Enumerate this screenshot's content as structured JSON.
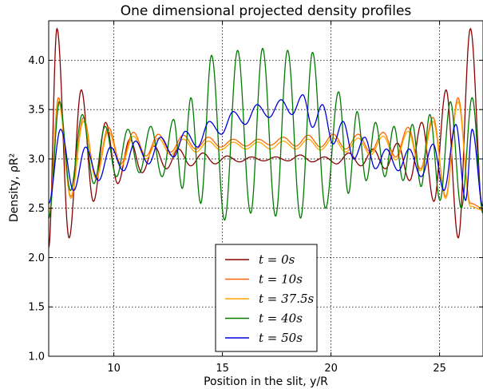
{
  "chart_data": {
    "type": "line",
    "title": "One dimensional projected density profiles",
    "xlabel": "Position in the slit, y/R",
    "ylabel": "Density, ρR²",
    "xlim": [
      7,
      27
    ],
    "ylim": [
      1.0,
      4.4
    ],
    "xticks": [
      10,
      15,
      20,
      25
    ],
    "xtick_labels": [
      "10",
      "15",
      "20",
      "25"
    ],
    "yticks": [
      1.0,
      1.5,
      2.0,
      2.5,
      3.0,
      3.5,
      4.0
    ],
    "ytick_labels": [
      "1.0",
      "1.5",
      "2.0",
      "2.5",
      "3.0",
      "3.5",
      "4.0"
    ],
    "grid": true,
    "legend_position": "lower center",
    "series": [
      {
        "name": "t = 0s",
        "label": "t = 0s",
        "color": "#8b0000",
        "peaks": [
          {
            "x": 7.38,
            "y": 4.32
          },
          {
            "x": 8.5,
            "y": 3.7
          },
          {
            "x": 9.62,
            "y": 3.37
          },
          {
            "x": 10.74,
            "y": 3.2
          },
          {
            "x": 11.86,
            "y": 3.13
          },
          {
            "x": 12.98,
            "y": 3.1
          },
          {
            "x": 14.1,
            "y": 3.06
          },
          {
            "x": 15.22,
            "y": 3.03
          },
          {
            "x": 16.34,
            "y": 3.02
          },
          {
            "x": 17.46,
            "y": 3.02
          },
          {
            "x": 18.58,
            "y": 3.04
          },
          {
            "x": 19.7,
            "y": 3.02
          },
          {
            "x": 20.82,
            "y": 3.06
          },
          {
            "x": 21.94,
            "y": 3.1
          },
          {
            "x": 23.06,
            "y": 3.16
          },
          {
            "x": 24.18,
            "y": 3.37
          },
          {
            "x": 25.3,
            "y": 3.7
          },
          {
            "x": 26.42,
            "y": 4.32
          }
        ],
        "troughs": [
          {
            "x": 7.0,
            "y": 2.1
          },
          {
            "x": 7.94,
            "y": 2.2
          },
          {
            "x": 9.06,
            "y": 2.57
          },
          {
            "x": 10.18,
            "y": 2.75
          },
          {
            "x": 11.3,
            "y": 2.86
          },
          {
            "x": 12.42,
            "y": 2.9
          },
          {
            "x": 13.54,
            "y": 2.93
          },
          {
            "x": 14.66,
            "y": 2.95
          },
          {
            "x": 15.78,
            "y": 2.97
          },
          {
            "x": 16.9,
            "y": 2.98
          },
          {
            "x": 18.02,
            "y": 2.98
          },
          {
            "x": 19.14,
            "y": 2.97
          },
          {
            "x": 20.26,
            "y": 2.95
          },
          {
            "x": 21.38,
            "y": 2.93
          },
          {
            "x": 22.5,
            "y": 2.9
          },
          {
            "x": 23.62,
            "y": 2.78
          },
          {
            "x": 24.74,
            "y": 2.57
          },
          {
            "x": 25.86,
            "y": 2.2
          },
          {
            "x": 27.0,
            "y": 2.45
          }
        ]
      },
      {
        "name": "t = 10s",
        "label": "t = 10s",
        "color": "#ff6600",
        "peaks": [
          {
            "x": 7.45,
            "y": 3.62
          },
          {
            "x": 8.6,
            "y": 3.42
          },
          {
            "x": 9.75,
            "y": 3.32
          },
          {
            "x": 10.9,
            "y": 3.27
          },
          {
            "x": 12.05,
            "y": 3.25
          },
          {
            "x": 13.2,
            "y": 3.24
          },
          {
            "x": 14.35,
            "y": 3.22
          },
          {
            "x": 15.5,
            "y": 3.2
          },
          {
            "x": 16.65,
            "y": 3.2
          },
          {
            "x": 17.8,
            "y": 3.22
          },
          {
            "x": 18.95,
            "y": 3.24
          },
          {
            "x": 20.1,
            "y": 3.25
          },
          {
            "x": 21.25,
            "y": 3.25
          },
          {
            "x": 22.4,
            "y": 3.27
          },
          {
            "x": 23.55,
            "y": 3.32
          },
          {
            "x": 24.7,
            "y": 3.42
          },
          {
            "x": 25.85,
            "y": 3.62
          }
        ],
        "troughs": [
          {
            "x": 7.0,
            "y": 2.4
          },
          {
            "x": 8.02,
            "y": 2.62
          },
          {
            "x": 9.18,
            "y": 2.82
          },
          {
            "x": 10.32,
            "y": 2.95
          },
          {
            "x": 11.48,
            "y": 3.03
          },
          {
            "x": 12.62,
            "y": 3.07
          },
          {
            "x": 13.78,
            "y": 3.1
          },
          {
            "x": 14.92,
            "y": 3.12
          },
          {
            "x": 16.08,
            "y": 3.13
          },
          {
            "x": 17.22,
            "y": 3.14
          },
          {
            "x": 18.38,
            "y": 3.13
          },
          {
            "x": 19.52,
            "y": 3.12
          },
          {
            "x": 20.68,
            "y": 3.1
          },
          {
            "x": 21.82,
            "y": 3.07
          },
          {
            "x": 22.98,
            "y": 3.02
          },
          {
            "x": 24.12,
            "y": 2.9
          },
          {
            "x": 25.28,
            "y": 2.62
          },
          {
            "x": 26.42,
            "y": 2.55
          },
          {
            "x": 27.0,
            "y": 2.5
          }
        ]
      },
      {
        "name": "t = 37.5s",
        "label": "t = 37.5s",
        "color": "#ffa500",
        "peaks": [
          {
            "x": 7.45,
            "y": 3.58
          },
          {
            "x": 8.6,
            "y": 3.38
          },
          {
            "x": 9.75,
            "y": 3.28
          },
          {
            "x": 10.9,
            "y": 3.23
          },
          {
            "x": 12.05,
            "y": 3.21
          },
          {
            "x": 13.2,
            "y": 3.2
          },
          {
            "x": 14.35,
            "y": 3.18
          },
          {
            "x": 15.5,
            "y": 3.17
          },
          {
            "x": 16.65,
            "y": 3.17
          },
          {
            "x": 17.8,
            "y": 3.18
          },
          {
            "x": 18.95,
            "y": 3.2
          },
          {
            "x": 20.1,
            "y": 3.21
          },
          {
            "x": 21.25,
            "y": 3.21
          },
          {
            "x": 22.4,
            "y": 3.23
          },
          {
            "x": 23.55,
            "y": 3.28
          },
          {
            "x": 24.7,
            "y": 3.38
          },
          {
            "x": 25.85,
            "y": 3.58
          }
        ],
        "troughs": [
          {
            "x": 7.0,
            "y": 2.4
          },
          {
            "x": 8.02,
            "y": 2.6
          },
          {
            "x": 9.18,
            "y": 2.8
          },
          {
            "x": 10.32,
            "y": 2.92
          },
          {
            "x": 11.48,
            "y": 3.0
          },
          {
            "x": 12.62,
            "y": 3.04
          },
          {
            "x": 13.78,
            "y": 3.07
          },
          {
            "x": 14.92,
            "y": 3.09
          },
          {
            "x": 16.08,
            "y": 3.1
          },
          {
            "x": 17.22,
            "y": 3.1
          },
          {
            "x": 18.38,
            "y": 3.1
          },
          {
            "x": 19.52,
            "y": 3.09
          },
          {
            "x": 20.68,
            "y": 3.07
          },
          {
            "x": 21.82,
            "y": 3.04
          },
          {
            "x": 22.98,
            "y": 2.99
          },
          {
            "x": 24.12,
            "y": 2.88
          },
          {
            "x": 25.28,
            "y": 2.6
          },
          {
            "x": 26.42,
            "y": 2.52
          },
          {
            "x": 27.0,
            "y": 2.48
          }
        ]
      },
      {
        "name": "t = 40s",
        "label": "t = 40s",
        "color": "#007a00",
        "peaks": [
          {
            "x": 7.5,
            "y": 3.58
          },
          {
            "x": 8.55,
            "y": 3.45
          },
          {
            "x": 9.6,
            "y": 3.33
          },
          {
            "x": 10.65,
            "y": 3.3
          },
          {
            "x": 11.7,
            "y": 3.33
          },
          {
            "x": 12.75,
            "y": 3.4
          },
          {
            "x": 13.55,
            "y": 3.62
          },
          {
            "x": 14.5,
            "y": 4.05
          },
          {
            "x": 15.7,
            "y": 4.1
          },
          {
            "x": 16.85,
            "y": 4.12
          },
          {
            "x": 18.0,
            "y": 4.1
          },
          {
            "x": 19.15,
            "y": 4.08
          },
          {
            "x": 20.35,
            "y": 3.68
          },
          {
            "x": 21.2,
            "y": 3.48
          },
          {
            "x": 22.05,
            "y": 3.37
          },
          {
            "x": 22.9,
            "y": 3.33
          },
          {
            "x": 23.75,
            "y": 3.35
          },
          {
            "x": 24.55,
            "y": 3.45
          },
          {
            "x": 25.5,
            "y": 3.58
          },
          {
            "x": 26.5,
            "y": 3.62
          }
        ],
        "troughs": [
          {
            "x": 7.0,
            "y": 2.4
          },
          {
            "x": 8.0,
            "y": 2.68
          },
          {
            "x": 9.08,
            "y": 2.75
          },
          {
            "x": 10.12,
            "y": 2.82
          },
          {
            "x": 11.18,
            "y": 2.86
          },
          {
            "x": 12.22,
            "y": 2.82
          },
          {
            "x": 13.15,
            "y": 2.7
          },
          {
            "x": 14.0,
            "y": 2.55
          },
          {
            "x": 15.1,
            "y": 2.38
          },
          {
            "x": 16.3,
            "y": 2.45
          },
          {
            "x": 17.45,
            "y": 2.42
          },
          {
            "x": 18.6,
            "y": 2.4
          },
          {
            "x": 19.75,
            "y": 2.5
          },
          {
            "x": 20.8,
            "y": 2.65
          },
          {
            "x": 21.62,
            "y": 2.78
          },
          {
            "x": 22.48,
            "y": 2.82
          },
          {
            "x": 23.32,
            "y": 2.78
          },
          {
            "x": 24.15,
            "y": 2.72
          },
          {
            "x": 25.02,
            "y": 2.58
          },
          {
            "x": 26.0,
            "y": 2.5
          },
          {
            "x": 27.0,
            "y": 2.45
          }
        ]
      },
      {
        "name": "t = 50s",
        "label": "t = 50s",
        "color": "#0000dd",
        "peaks": [
          {
            "x": 7.55,
            "y": 3.3
          },
          {
            "x": 8.7,
            "y": 3.12
          },
          {
            "x": 9.85,
            "y": 3.12
          },
          {
            "x": 11.0,
            "y": 3.18
          },
          {
            "x": 12.15,
            "y": 3.22
          },
          {
            "x": 13.3,
            "y": 3.28
          },
          {
            "x": 14.4,
            "y": 3.38
          },
          {
            "x": 15.5,
            "y": 3.48
          },
          {
            "x": 16.6,
            "y": 3.55
          },
          {
            "x": 17.7,
            "y": 3.6
          },
          {
            "x": 18.7,
            "y": 3.65
          },
          {
            "x": 19.6,
            "y": 3.55
          },
          {
            "x": 20.55,
            "y": 3.38
          },
          {
            "x": 21.55,
            "y": 3.22
          },
          {
            "x": 22.55,
            "y": 3.1
          },
          {
            "x": 23.6,
            "y": 3.1
          },
          {
            "x": 24.7,
            "y": 3.15
          },
          {
            "x": 25.75,
            "y": 3.35
          },
          {
            "x": 26.5,
            "y": 3.3
          }
        ],
        "troughs": [
          {
            "x": 7.0,
            "y": 2.55
          },
          {
            "x": 8.15,
            "y": 2.68
          },
          {
            "x": 9.3,
            "y": 2.78
          },
          {
            "x": 10.45,
            "y": 2.88
          },
          {
            "x": 11.6,
            "y": 2.95
          },
          {
            "x": 12.75,
            "y": 3.02
          },
          {
            "x": 13.85,
            "y": 3.12
          },
          {
            "x": 14.95,
            "y": 3.25
          },
          {
            "x": 16.05,
            "y": 3.35
          },
          {
            "x": 17.15,
            "y": 3.42
          },
          {
            "x": 18.2,
            "y": 3.45
          },
          {
            "x": 19.15,
            "y": 3.32
          },
          {
            "x": 20.1,
            "y": 3.15
          },
          {
            "x": 21.05,
            "y": 3.0
          },
          {
            "x": 22.05,
            "y": 2.9
          },
          {
            "x": 23.1,
            "y": 2.88
          },
          {
            "x": 24.15,
            "y": 2.82
          },
          {
            "x": 25.2,
            "y": 2.68
          },
          {
            "x": 26.2,
            "y": 2.58
          },
          {
            "x": 27.0,
            "y": 2.52
          }
        ]
      }
    ]
  }
}
